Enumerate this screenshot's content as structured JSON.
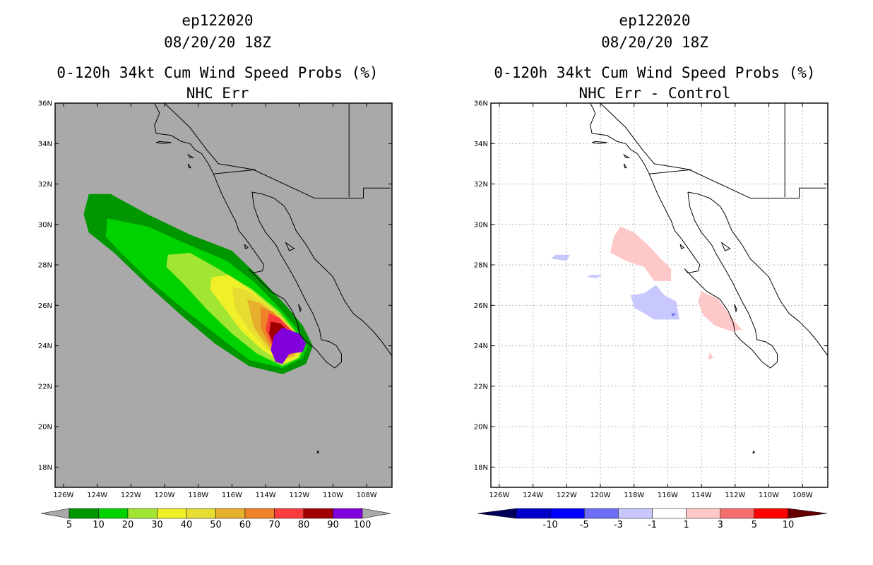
{
  "chart_data": [
    {
      "type": "heatmap",
      "title_lines": [
        "ep122020",
        "08/20/20 18Z",
        "0-120h 34kt Cum Wind Speed Probs (%)",
        "NHC Err"
      ],
      "x_ticks": [
        "126W",
        "124W",
        "122W",
        "120W",
        "118W",
        "116W",
        "114W",
        "112W",
        "110W",
        "108W"
      ],
      "y_ticks": [
        "36N",
        "34N",
        "32N",
        "30N",
        "28N",
        "26N",
        "24N",
        "22N",
        "20N",
        "18N"
      ],
      "xlim": [
        -126.5,
        -106.5
      ],
      "ylim": [
        17,
        36
      ],
      "grid": false,
      "background_color": "#a9a9a9",
      "colorbar": {
        "labels": [
          "5",
          "10",
          "20",
          "30",
          "40",
          "50",
          "60",
          "70",
          "80",
          "90",
          "100"
        ],
        "colors": [
          "#009600",
          "#00d200",
          "#a0e632",
          "#f0f028",
          "#e6dc32",
          "#e6af2d",
          "#f08228",
          "#fa3c3c",
          "#a00000",
          "#8200dc"
        ],
        "under_color": "#a9a9a9",
        "over_color": "#a9a9a9"
      },
      "contours": [
        {
          "level": 5,
          "points": [
            [
              -124.5,
              31.5
            ],
            [
              -123.2,
              31.5
            ],
            [
              -121.0,
              30.5
            ],
            [
              -118.5,
              29.5
            ],
            [
              -116.0,
              28.7
            ],
            [
              -114.5,
              27.5
            ],
            [
              -112.8,
              26.0
            ],
            [
              -111.8,
              25.0
            ],
            [
              -111.2,
              24.0
            ],
            [
              -111.6,
              23.1
            ],
            [
              -113.0,
              22.6
            ],
            [
              -115.0,
              23.0
            ],
            [
              -117.0,
              24.1
            ],
            [
              -119.0,
              25.5
            ],
            [
              -121.0,
              27.0
            ],
            [
              -123.0,
              28.6
            ],
            [
              -124.5,
              29.6
            ],
            [
              -124.8,
              30.5
            ]
          ]
        },
        {
          "level": 10,
          "points": [
            [
              -123.4,
              30.3
            ],
            [
              -121.0,
              29.9
            ],
            [
              -118.6,
              29.0
            ],
            [
              -116.3,
              28.2
            ],
            [
              -114.6,
              27.1
            ],
            [
              -113.1,
              25.8
            ],
            [
              -112.2,
              24.9
            ],
            [
              -111.5,
              24.0
            ],
            [
              -111.8,
              23.4
            ],
            [
              -113.0,
              22.9
            ],
            [
              -115.0,
              23.3
            ],
            [
              -117.0,
              24.6
            ],
            [
              -119.0,
              25.9
            ],
            [
              -121.0,
              27.3
            ],
            [
              -122.6,
              28.6
            ],
            [
              -123.5,
              29.4
            ]
          ]
        },
        {
          "level": 20,
          "points": [
            [
              -119.8,
              28.5
            ],
            [
              -118.5,
              28.6
            ],
            [
              -116.8,
              27.8
            ],
            [
              -114.8,
              26.8
            ],
            [
              -113.2,
              25.7
            ],
            [
              -112.3,
              24.8
            ],
            [
              -111.7,
              24.0
            ],
            [
              -112.0,
              23.4
            ],
            [
              -113.0,
              23.0
            ],
            [
              -114.5,
              23.6
            ],
            [
              -116.0,
              24.6
            ],
            [
              -117.5,
              25.8
            ],
            [
              -118.8,
              27.0
            ],
            [
              -119.9,
              27.9
            ]
          ]
        },
        {
          "level": 30,
          "points": [
            [
              -117.2,
              27.4
            ],
            [
              -116.2,
              27.5
            ],
            [
              -114.8,
              26.7
            ],
            [
              -113.4,
              25.7
            ],
            [
              -112.4,
              24.8
            ],
            [
              -111.8,
              24.0
            ],
            [
              -112.1,
              23.4
            ],
            [
              -113.0,
              23.1
            ],
            [
              -114.2,
              23.8
            ],
            [
              -115.4,
              24.7
            ],
            [
              -116.4,
              25.8
            ],
            [
              -117.3,
              26.8
            ]
          ]
        },
        {
          "level": 40,
          "points": [
            [
              -116.0,
              26.9
            ],
            [
              -115.2,
              26.8
            ],
            [
              -114.2,
              26.2
            ],
            [
              -113.2,
              25.5
            ],
            [
              -112.4,
              24.8
            ],
            [
              -111.9,
              24.0
            ],
            [
              -112.2,
              23.5
            ],
            [
              -113.0,
              23.2
            ],
            [
              -114.0,
              23.9
            ],
            [
              -115.0,
              24.8
            ],
            [
              -115.8,
              25.8
            ]
          ]
        },
        {
          "level": 50,
          "points": [
            [
              -115.1,
              26.3
            ],
            [
              -114.3,
              26.1
            ],
            [
              -113.5,
              25.6
            ],
            [
              -112.6,
              24.9
            ],
            [
              -112.0,
              24.1
            ],
            [
              -112.3,
              23.5
            ],
            [
              -113.0,
              23.3
            ],
            [
              -113.9,
              24.0
            ],
            [
              -114.7,
              24.9
            ]
          ]
        },
        {
          "level": 60,
          "points": [
            [
              -114.3,
              25.9
            ],
            [
              -113.6,
              25.7
            ],
            [
              -112.9,
              25.1
            ],
            [
              -112.1,
              24.2
            ],
            [
              -112.4,
              23.6
            ],
            [
              -113.0,
              23.4
            ],
            [
              -113.8,
              24.1
            ],
            [
              -114.3,
              24.9
            ]
          ]
        },
        {
          "level": 70,
          "points": [
            [
              -113.8,
              25.6
            ],
            [
              -113.2,
              25.4
            ],
            [
              -112.5,
              24.8
            ],
            [
              -112.0,
              24.1
            ],
            [
              -112.5,
              23.6
            ],
            [
              -113.0,
              23.4
            ],
            [
              -113.6,
              24.0
            ],
            [
              -114.0,
              24.8
            ]
          ]
        },
        {
          "level": 80,
          "points": [
            [
              -113.7,
              25.2
            ],
            [
              -113.1,
              25.1
            ],
            [
              -112.5,
              24.6
            ],
            [
              -112.1,
              24.1
            ],
            [
              -112.6,
              23.7
            ],
            [
              -113.0,
              23.5
            ],
            [
              -113.5,
              24.0
            ],
            [
              -113.8,
              24.6
            ]
          ]
        },
        {
          "level": 90,
          "points": [
            [
              -113.0,
              24.9
            ],
            [
              -112.0,
              24.6
            ],
            [
              -111.6,
              24.1
            ],
            [
              -111.8,
              23.7
            ],
            [
              -112.6,
              23.6
            ],
            [
              -113.0,
              23.1
            ],
            [
              -113.4,
              23.2
            ],
            [
              -113.7,
              23.8
            ],
            [
              -113.5,
              24.5
            ]
          ]
        }
      ]
    },
    {
      "type": "heatmap",
      "title_lines": [
        "ep122020",
        "08/20/20 18Z",
        "0-120h 34kt Cum Wind Speed Probs (%)",
        "NHC Err - Control"
      ],
      "x_ticks": [
        "126W",
        "124W",
        "122W",
        "120W",
        "118W",
        "116W",
        "114W",
        "112W",
        "110W",
        "108W"
      ],
      "y_ticks": [
        "36N",
        "34N",
        "32N",
        "30N",
        "28N",
        "26N",
        "24N",
        "22N",
        "20N",
        "18N"
      ],
      "xlim": [
        -126.5,
        -106.5
      ],
      "ylim": [
        17,
        36
      ],
      "grid": true,
      "background_color": "#ffffff",
      "colorbar": {
        "labels": [
          "-10",
          "-5",
          "-3",
          "-1",
          "1",
          "3",
          "5",
          "10"
        ],
        "colors": [
          "#0000c8",
          "#0000ff",
          "#6e6ef5",
          "#c8c8ff",
          "#ffffff",
          "#ffc8c8",
          "#f56e6e",
          "#ff0000"
        ],
        "under_color": "#00005a",
        "over_color": "#640000"
      },
      "regions": [
        {
          "value": 1.5,
          "color": "#ffc8c8",
          "points": [
            [
              -118.8,
              29.9
            ],
            [
              -118.0,
              29.6
            ],
            [
              -117.2,
              29.0
            ],
            [
              -116.4,
              28.3
            ],
            [
              -115.8,
              27.8
            ],
            [
              -115.8,
              27.2
            ],
            [
              -116.8,
              27.2
            ],
            [
              -117.4,
              27.9
            ],
            [
              -118.5,
              28.2
            ],
            [
              -119.4,
              28.6
            ],
            [
              -119.2,
              29.4
            ]
          ]
        },
        {
          "value": 1.5,
          "color": "#ffc8c8",
          "points": [
            [
              -114.0,
              26.7
            ],
            [
              -113.0,
              26.3
            ],
            [
              -112.3,
              25.5
            ],
            [
              -111.6,
              24.8
            ],
            [
              -112.2,
              24.7
            ],
            [
              -113.2,
              25.0
            ],
            [
              -113.9,
              25.5
            ],
            [
              -114.2,
              26.2
            ]
          ]
        },
        {
          "value": 1.5,
          "color": "#ffc8c8",
          "points": [
            [
              -113.5,
              23.7
            ],
            [
              -113.3,
              23.4
            ],
            [
              -113.6,
              23.3
            ]
          ]
        },
        {
          "value": -1.5,
          "color": "#c8c8ff",
          "points": [
            [
              -116.7,
              27.0
            ],
            [
              -116.2,
              26.5
            ],
            [
              -115.5,
              26.2
            ],
            [
              -115.3,
              25.3
            ],
            [
              -116.8,
              25.3
            ],
            [
              -118.0,
              25.9
            ],
            [
              -118.2,
              26.5
            ],
            [
              -117.4,
              26.6
            ]
          ]
        },
        {
          "value": -1.5,
          "color": "#c8c8ff",
          "points": [
            [
              -122.7,
              28.5
            ],
            [
              -121.8,
              28.5
            ],
            [
              -122.0,
              28.2
            ],
            [
              -122.9,
              28.3
            ]
          ]
        },
        {
          "value": -1.5,
          "color": "#c8c8ff",
          "points": [
            [
              -120.6,
              27.5
            ],
            [
              -119.9,
              27.5
            ],
            [
              -120.2,
              27.35
            ],
            [
              -120.8,
              27.4
            ]
          ]
        },
        {
          "value": -3.5,
          "color": "#6e6ef5",
          "points": [
            [
              -115.8,
              25.6
            ],
            [
              -115.5,
              25.6
            ],
            [
              -115.7,
              25.45
            ]
          ]
        }
      ]
    }
  ]
}
